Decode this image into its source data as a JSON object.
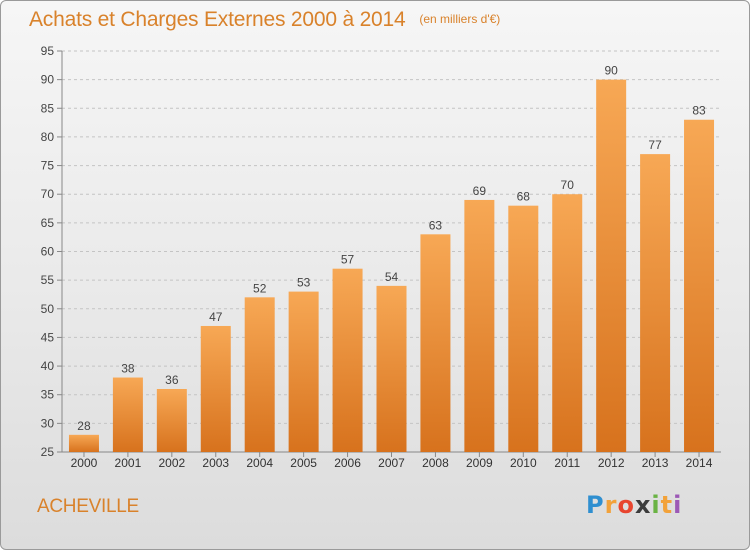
{
  "header": {
    "title": "Achats et Charges Externes 2000 à 2014",
    "unit": "(en milliers d'€)"
  },
  "footer": {
    "commune": "ACHEVILLE",
    "logo": "Proxiti"
  },
  "colors": {
    "accent": "#d9822b",
    "bar_top": "#f7a855",
    "bar_bottom": "#d7721d"
  },
  "chart_data": {
    "type": "bar",
    "title": "Achats et Charges Externes 2000 à 2014",
    "subtitle": "(en milliers d'€)",
    "categories": [
      "2000",
      "2001",
      "2002",
      "2003",
      "2004",
      "2005",
      "2006",
      "2007",
      "2008",
      "2009",
      "2010",
      "2011",
      "2012",
      "2013",
      "2014"
    ],
    "values": [
      28,
      38,
      36,
      47,
      52,
      53,
      57,
      54,
      63,
      69,
      68,
      70,
      90,
      77,
      83
    ],
    "data_labels": [
      "28",
      "38",
      "36",
      "47",
      "52",
      "53",
      "57",
      "54",
      "63",
      "69",
      "68",
      "70",
      "90",
      "77",
      "83"
    ],
    "yticks": [
      25,
      30,
      35,
      40,
      45,
      50,
      55,
      60,
      65,
      70,
      75,
      80,
      85,
      90,
      95
    ],
    "ylim": [
      25,
      95
    ],
    "grid": "horizontal dashed",
    "legend": "none"
  }
}
